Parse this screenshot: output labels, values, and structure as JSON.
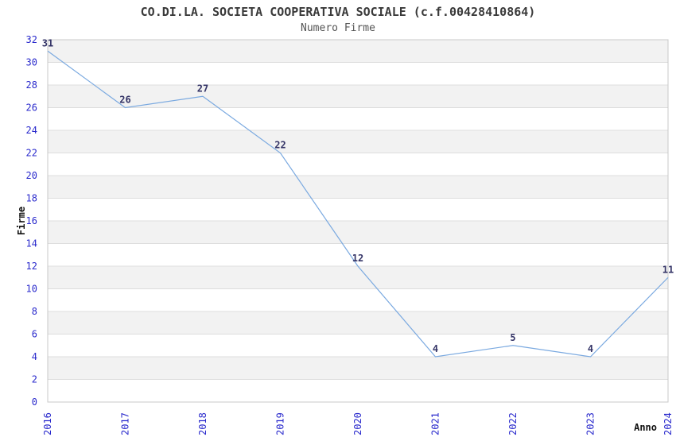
{
  "chart_data": {
    "type": "line",
    "title": "CO.DI.LA. SOCIETA COOPERATIVA SOCIALE (c.f.00428410864)",
    "subtitle": "Numero Firme",
    "xlabel": "Anno",
    "ylabel": "Firme",
    "categories": [
      "2016",
      "2017",
      "2018",
      "2019",
      "2020",
      "2021",
      "2022",
      "2023",
      "2024"
    ],
    "values": [
      31,
      26,
      27,
      22,
      12,
      4,
      5,
      4,
      11
    ],
    "ylim": [
      0,
      32
    ],
    "yticks": [
      0,
      2,
      4,
      6,
      8,
      10,
      12,
      14,
      16,
      18,
      20,
      22,
      24,
      26,
      28,
      30,
      32
    ],
    "grid": true,
    "legend": "none",
    "point_labels_shown": true,
    "colors": {
      "line": "#7aa9e0",
      "tick_label": "#2929cc",
      "value_label": "#333366",
      "band": "#f2f2f2",
      "grid": "#dddddd",
      "border": "#c8c8c8",
      "title": "#3a3a3a",
      "subtitle": "#555555",
      "axis_title": "#111111",
      "background": "#ffffff"
    }
  }
}
